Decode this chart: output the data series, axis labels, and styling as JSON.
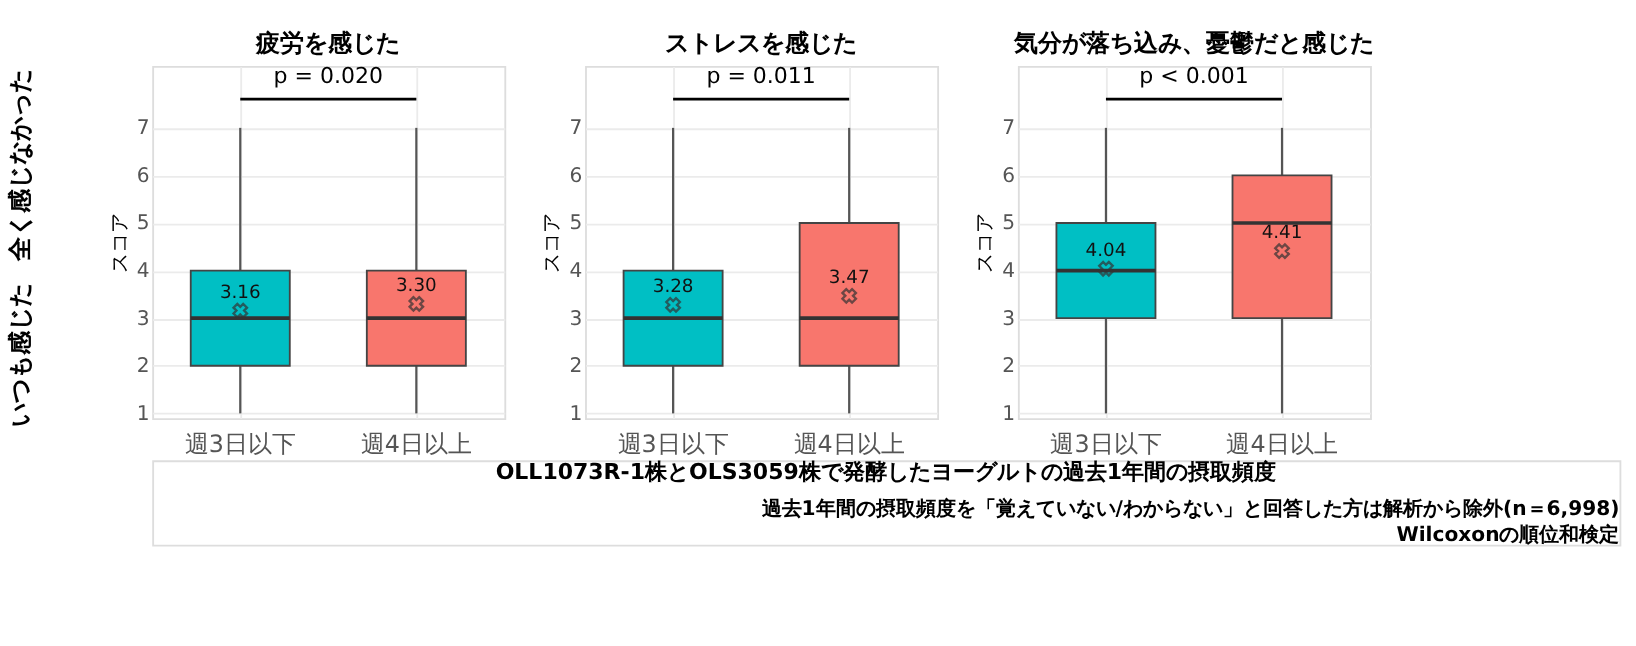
{
  "chart_data": [
    {
      "type": "box",
      "title": "疲労を感じた",
      "ylabel": "スコア",
      "categories": [
        "週3日以下",
        "週4日以上"
      ],
      "colors": [
        "#00bfc4",
        "#f8766d"
      ],
      "boxes": [
        {
          "low": 1,
          "q1": 2,
          "median": 3,
          "q3": 4,
          "high": 7
        },
        {
          "low": 1,
          "q1": 2,
          "median": 3,
          "q3": 4,
          "high": 7
        }
      ],
      "series": [
        {
          "type": "scatter",
          "x": [
            "週3日以下",
            "週4日以上"
          ],
          "values": [
            3.16,
            3.3
          ],
          "value_labels": [
            "3.16",
            "3.30"
          ],
          "color": "#333333"
        }
      ],
      "marker": "cross",
      "ylim": [
        0.9,
        8.3
      ],
      "yticks": [
        1,
        2,
        3,
        4,
        5,
        6,
        7
      ],
      "grid": true,
      "legend": false,
      "annotations": [
        "p = 0.020",
        "全く感じなかった",
        "いつも感じた"
      ]
    },
    {
      "type": "box",
      "title": "ストレスを感じた",
      "ylabel": "スコア",
      "xlabel": "OLL1073R-1株とOLS3059株で発酵したヨーグルトの過去1年間の摂取頻度",
      "categories": [
        "週3日以下",
        "週4日以上"
      ],
      "colors": [
        "#00bfc4",
        "#f8766d"
      ],
      "boxes": [
        {
          "low": 1,
          "q1": 2,
          "median": 3,
          "q3": 4,
          "high": 7
        },
        {
          "low": 1,
          "q1": 2,
          "median": 3,
          "q3": 5,
          "high": 7
        }
      ],
      "series": [
        {
          "type": "scatter",
          "x": [
            "週3日以下",
            "週4日以上"
          ],
          "values": [
            3.28,
            3.47
          ],
          "value_labels": [
            "3.28",
            "3.47"
          ],
          "color": "#333333"
        }
      ],
      "marker": "cross",
      "ylim": [
        0.9,
        8.3
      ],
      "yticks": [
        1,
        2,
        3,
        4,
        5,
        6,
        7
      ],
      "grid": true,
      "legend": false,
      "annotations": [
        "p = 0.011"
      ]
    },
    {
      "type": "box",
      "title": "気分が落ち込み、憂鬱だと感じた",
      "ylabel": "スコア",
      "categories": [
        "週3日以下",
        "週4日以上"
      ],
      "colors": [
        "#00bfc4",
        "#f8766d"
      ],
      "boxes": [
        {
          "low": 1,
          "q1": 3,
          "median": 4,
          "q3": 5,
          "high": 7
        },
        {
          "low": 1,
          "q1": 3,
          "median": 5,
          "q3": 6,
          "high": 7
        }
      ],
      "series": [
        {
          "type": "scatter",
          "x": [
            "週3日以下",
            "週4日以上"
          ],
          "values": [
            4.04,
            4.41
          ],
          "value_labels": [
            "4.04",
            "4.41"
          ],
          "color": "#333333"
        }
      ],
      "marker": "cross",
      "ylim": [
        0.9,
        8.3
      ],
      "yticks": [
        1,
        2,
        3,
        4,
        5,
        6,
        7
      ],
      "grid": true,
      "legend": false,
      "annotations": [
        "p < 0.001",
        "過去1年間の摂取頻度を「覚えていない/わからない」と回答した方は解析から除外(n＝6,998)",
        "Wilcoxonの順位和検定"
      ]
    }
  ]
}
